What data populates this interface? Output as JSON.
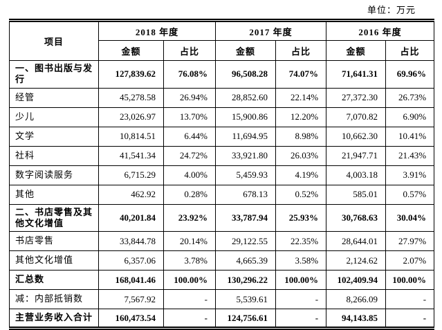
{
  "unit_label": "单位：万元",
  "table": {
    "item_header": "项目",
    "year_headers": [
      "2018 年度",
      "2017 年度",
      "2016 年度"
    ],
    "sub_headers": {
      "amount": "金额",
      "ratio": "占比"
    },
    "rows": [
      {
        "item": "一、图书出版与发行",
        "bold": true,
        "values": [
          "127,839.62",
          "76.08%",
          "96,508.28",
          "74.07%",
          "71,641.31",
          "69.96%"
        ]
      },
      {
        "item": "经管",
        "bold": false,
        "values": [
          "45,278.58",
          "26.94%",
          "28,852.60",
          "22.14%",
          "27,372.30",
          "26.73%"
        ]
      },
      {
        "item": "少儿",
        "bold": false,
        "values": [
          "23,026.97",
          "13.70%",
          "15,900.86",
          "12.20%",
          "7,070.82",
          "6.90%"
        ]
      },
      {
        "item": "文学",
        "bold": false,
        "values": [
          "10,814.51",
          "6.44%",
          "11,694.95",
          "8.98%",
          "10,662.30",
          "10.41%"
        ]
      },
      {
        "item": "社科",
        "bold": false,
        "values": [
          "41,541.34",
          "24.72%",
          "33,921.80",
          "26.03%",
          "21,947.71",
          "21.43%"
        ]
      },
      {
        "item": "数字阅读服务",
        "bold": false,
        "values": [
          "6,715.29",
          "4.00%",
          "5,459.93",
          "4.19%",
          "4,003.18",
          "3.91%"
        ]
      },
      {
        "item": "其他",
        "bold": false,
        "values": [
          "462.92",
          "0.28%",
          "678.13",
          "0.52%",
          "585.01",
          "0.57%"
        ]
      },
      {
        "item": "二、书店零售及其他文化增值",
        "bold": true,
        "values": [
          "40,201.84",
          "23.92%",
          "33,787.94",
          "25.93%",
          "30,768.63",
          "30.04%"
        ]
      },
      {
        "item": "书店零售",
        "bold": false,
        "values": [
          "33,844.78",
          "20.14%",
          "29,122.55",
          "22.35%",
          "28,644.01",
          "27.97%"
        ]
      },
      {
        "item": "其他文化增值",
        "bold": false,
        "values": [
          "6,357.06",
          "3.78%",
          "4,665.39",
          "3.58%",
          "2,124.62",
          "2.07%"
        ]
      },
      {
        "item": "汇总数",
        "bold": true,
        "values": [
          "168,041.46",
          "100.00%",
          "130,296.22",
          "100.00%",
          "102,409.94",
          "100.00%"
        ]
      },
      {
        "item": "减：内部抵销数",
        "bold": false,
        "values": [
          "7,567.92",
          "-",
          "5,539.61",
          "-",
          "8,266.09",
          "-"
        ]
      },
      {
        "item": "主营业务收入合计",
        "bold": true,
        "values": [
          "160,473.54",
          "-",
          "124,756.61",
          "-",
          "94,143.85",
          "-"
        ]
      }
    ]
  }
}
